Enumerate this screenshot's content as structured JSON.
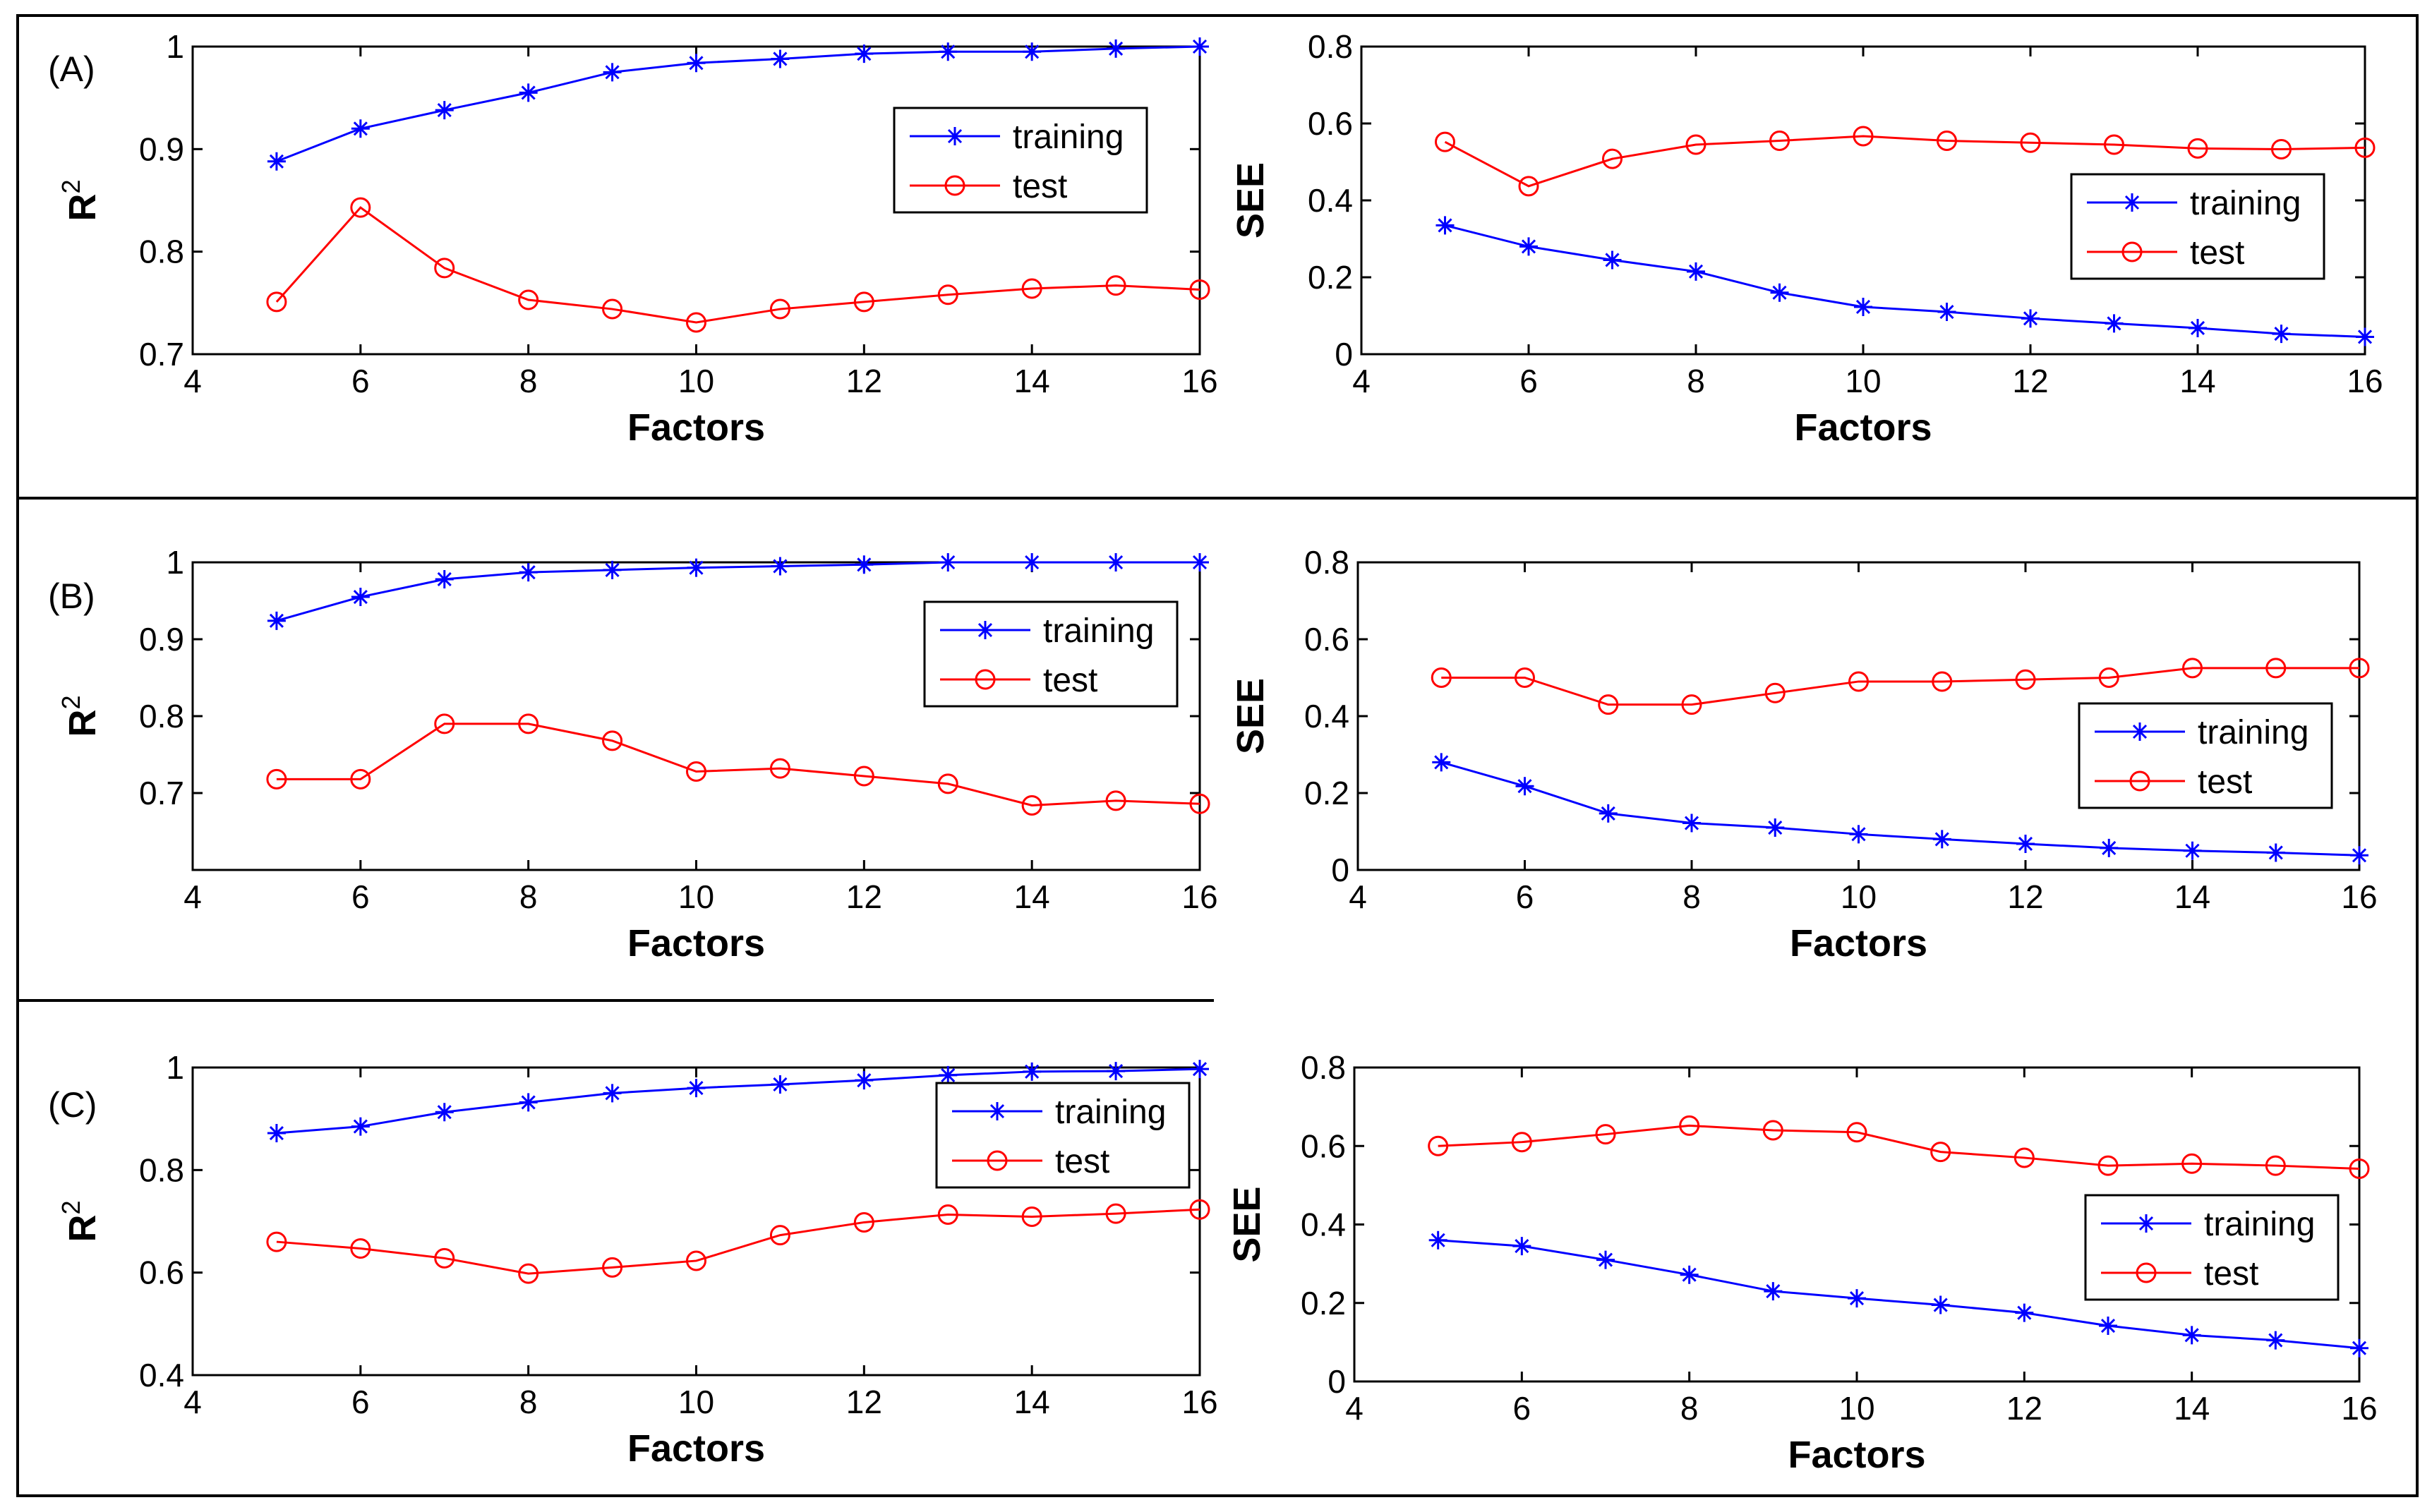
{
  "figure": {
    "panels": [
      {
        "label": "(A)"
      },
      {
        "label": "(B)"
      },
      {
        "label": "(C)"
      }
    ]
  },
  "chart_data": [
    {
      "id": "A-R2",
      "type": "line",
      "panel_label": "(A)",
      "xlabel": "Factors",
      "ylabel": "R2",
      "ylabel_base": "R",
      "ylabel_sup": "2",
      "xlim": [
        4,
        16
      ],
      "ylim": [
        0.7,
        1
      ],
      "xticks": [
        "4",
        "6",
        "8",
        "10",
        "12",
        "14",
        "16"
      ],
      "yticks": [
        "0.7",
        "0.8",
        "0.9",
        "1"
      ],
      "legend_position": "top-right",
      "x": [
        5,
        6,
        7,
        8,
        9,
        10,
        11,
        12,
        13,
        14,
        15,
        16
      ],
      "series": [
        {
          "name": "training",
          "color": "#0000ff",
          "marker": "star",
          "values": [
            0.888,
            0.92,
            0.938,
            0.955,
            0.975,
            0.984,
            0.988,
            0.993,
            0.995,
            0.995,
            0.998,
            1.0
          ]
        },
        {
          "name": "test",
          "color": "#ff0000",
          "marker": "circle",
          "values": [
            0.751,
            0.843,
            0.784,
            0.753,
            0.744,
            0.731,
            0.744,
            0.751,
            0.758,
            0.764,
            0.767,
            0.763
          ]
        }
      ]
    },
    {
      "id": "A-SEE",
      "type": "line",
      "xlabel": "Factors",
      "ylabel": "SEE",
      "xlim": [
        4,
        16
      ],
      "ylim": [
        0,
        0.8
      ],
      "xticks": [
        "4",
        "6",
        "8",
        "10",
        "12",
        "14",
        "16"
      ],
      "yticks": [
        "0",
        "0.2",
        "0.4",
        "0.6",
        "0.8"
      ],
      "legend_position": "right",
      "x": [
        5,
        6,
        7,
        8,
        9,
        10,
        11,
        12,
        13,
        14,
        15,
        16
      ],
      "series": [
        {
          "name": "training",
          "color": "#0000ff",
          "marker": "star",
          "values": [
            0.335,
            0.28,
            0.245,
            0.215,
            0.16,
            0.123,
            0.11,
            0.093,
            0.08,
            0.068,
            0.053,
            0.045
          ]
        },
        {
          "name": "test",
          "color": "#ff0000",
          "marker": "circle",
          "values": [
            0.552,
            0.437,
            0.508,
            0.545,
            0.555,
            0.567,
            0.555,
            0.55,
            0.545,
            0.535,
            0.533,
            0.537
          ]
        }
      ]
    },
    {
      "id": "B-R2",
      "type": "line",
      "panel_label": "(B)",
      "xlabel": "Factors",
      "ylabel": "R2",
      "ylabel_base": "R",
      "ylabel_sup": "2",
      "xlim": [
        4,
        16
      ],
      "ylim": [
        0.6,
        1
      ],
      "xticks": [
        "4",
        "6",
        "8",
        "10",
        "12",
        "14",
        "16"
      ],
      "yticks": [
        "0.7",
        "0.8",
        "0.9",
        "1"
      ],
      "legend_position": "top-right",
      "x": [
        5,
        6,
        7,
        8,
        9,
        10,
        11,
        12,
        13,
        14,
        15,
        16
      ],
      "series": [
        {
          "name": "training",
          "color": "#0000ff",
          "marker": "star",
          "values": [
            0.924,
            0.955,
            0.978,
            0.987,
            0.99,
            0.993,
            0.995,
            0.997,
            1.0,
            1.0,
            1.0,
            1.0
          ]
        },
        {
          "name": "test",
          "color": "#ff0000",
          "marker": "circle",
          "values": [
            0.718,
            0.718,
            0.79,
            0.79,
            0.768,
            0.728,
            0.732,
            0.722,
            0.712,
            0.684,
            0.69,
            0.686
          ]
        }
      ]
    },
    {
      "id": "B-SEE",
      "type": "line",
      "xlabel": "Factors",
      "ylabel": "SEE",
      "xlim": [
        4,
        16
      ],
      "ylim": [
        0,
        0.8
      ],
      "xticks": [
        "4",
        "6",
        "8",
        "10",
        "12",
        "14",
        "16"
      ],
      "yticks": [
        "0",
        "0.2",
        "0.4",
        "0.6",
        "0.8"
      ],
      "legend_position": "right",
      "x": [
        5,
        6,
        7,
        8,
        9,
        10,
        11,
        12,
        13,
        14,
        15,
        16
      ],
      "series": [
        {
          "name": "training",
          "color": "#0000ff",
          "marker": "star",
          "values": [
            0.28,
            0.218,
            0.147,
            0.122,
            0.11,
            0.093,
            0.08,
            0.068,
            0.057,
            0.05,
            0.045,
            0.038
          ]
        },
        {
          "name": "test",
          "color": "#ff0000",
          "marker": "circle",
          "values": [
            0.5,
            0.5,
            0.43,
            0.43,
            0.46,
            0.49,
            0.49,
            0.495,
            0.5,
            0.525,
            0.525,
            0.525
          ]
        }
      ]
    },
    {
      "id": "C-R2",
      "type": "line",
      "panel_label": "(C)",
      "xlabel": "Factors",
      "ylabel": "R2",
      "ylabel_base": "R",
      "ylabel_sup": "2",
      "xlim": [
        4,
        16
      ],
      "ylim": [
        0.4,
        1
      ],
      "xticks": [
        "4",
        "6",
        "8",
        "10",
        "12",
        "14",
        "16"
      ],
      "yticks": [
        "0.4",
        "0.6",
        "0.8",
        "1"
      ],
      "legend_position": "top-right",
      "x": [
        5,
        6,
        7,
        8,
        9,
        10,
        11,
        12,
        13,
        14,
        15,
        16
      ],
      "series": [
        {
          "name": "training",
          "color": "#0000ff",
          "marker": "star",
          "values": [
            0.872,
            0.885,
            0.913,
            0.932,
            0.95,
            0.96,
            0.967,
            0.975,
            0.985,
            0.992,
            0.993,
            0.997
          ]
        },
        {
          "name": "test",
          "color": "#ff0000",
          "marker": "circle",
          "values": [
            0.66,
            0.647,
            0.628,
            0.598,
            0.61,
            0.623,
            0.673,
            0.698,
            0.713,
            0.709,
            0.715,
            0.723
          ]
        }
      ]
    },
    {
      "id": "C-SEE",
      "type": "line",
      "xlabel": "Factors",
      "ylabel": "SEE",
      "xlim": [
        4,
        16
      ],
      "ylim": [
        0,
        0.8
      ],
      "xticks": [
        "4",
        "6",
        "8",
        "10",
        "12",
        "14",
        "16"
      ],
      "yticks": [
        "0",
        "0.2",
        "0.4",
        "0.6",
        "0.8"
      ],
      "legend_position": "right",
      "x": [
        5,
        6,
        7,
        8,
        9,
        10,
        11,
        12,
        13,
        14,
        15,
        16
      ],
      "series": [
        {
          "name": "training",
          "color": "#0000ff",
          "marker": "star",
          "values": [
            0.36,
            0.345,
            0.31,
            0.272,
            0.23,
            0.212,
            0.195,
            0.175,
            0.142,
            0.118,
            0.105,
            0.085
          ]
        },
        {
          "name": "test",
          "color": "#ff0000",
          "marker": "circle",
          "values": [
            0.6,
            0.61,
            0.63,
            0.652,
            0.64,
            0.635,
            0.585,
            0.57,
            0.55,
            0.555,
            0.55,
            0.542
          ]
        }
      ]
    }
  ]
}
